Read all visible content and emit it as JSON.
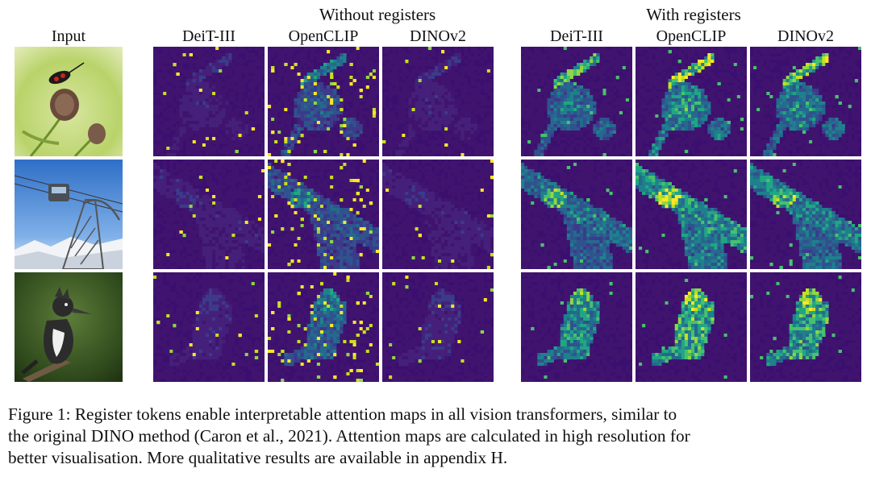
{
  "headers": {
    "without_registers": "Without registers",
    "with_registers": "With registers"
  },
  "columns": {
    "input": "Input",
    "without": [
      "DeiT-III",
      "OpenCLIP",
      "DINOv2"
    ],
    "with": [
      "DeiT-III",
      "OpenCLIP",
      "DINOv2"
    ]
  },
  "rows": [
    {
      "subject": "insect-on-thistle"
    },
    {
      "subject": "cable-car-pylon"
    },
    {
      "subject": "kingfisher-bird"
    }
  ],
  "caption": {
    "lines": [
      "Figure 1: Register tokens enable  interpretable attention maps in all vision transformers, similar to",
      "the original DINO method (Caron et al., 2021). Attention maps are calculated in high resolution for",
      "better visualisation. More qualitative results are available in appendix H."
    ]
  },
  "colors": {
    "colormap": "viridis",
    "map_background": "#3b0f6f",
    "artifact_highlight": "#fde725"
  }
}
